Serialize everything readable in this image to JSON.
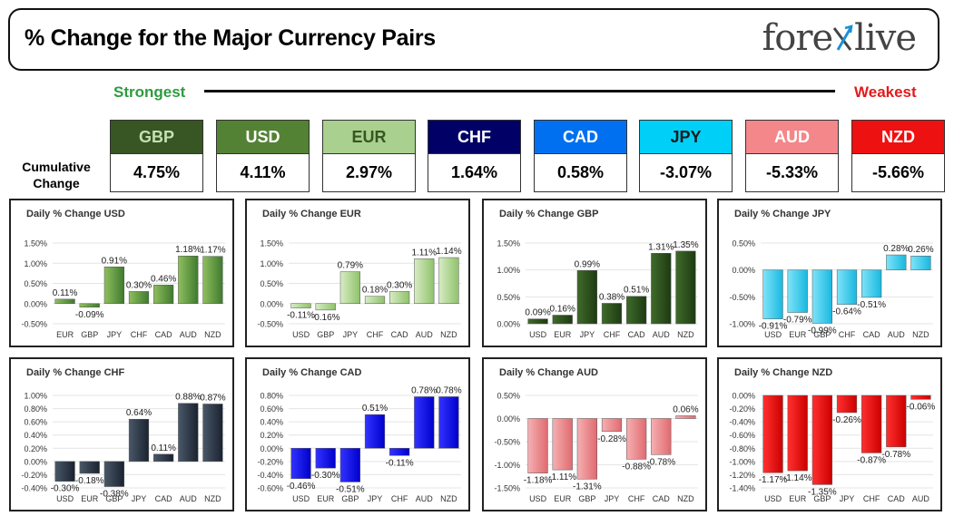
{
  "header": {
    "title": "% Change for the Major Currency Pairs",
    "logo_left": "fore",
    "logo_right": "live"
  },
  "ranking": {
    "strongest_label": "Strongest",
    "weakest_label": "Weakest",
    "cumulative_label_1": "Cumulative",
    "cumulative_label_2": "Change",
    "currencies": [
      {
        "name": "GBP",
        "value": "4.75%",
        "bg": "#375623",
        "fg": "#c6e0b4"
      },
      {
        "name": "USD",
        "value": "4.11%",
        "bg": "#548235",
        "fg": "#ffffff"
      },
      {
        "name": "EUR",
        "value": "2.97%",
        "bg": "#a9d08e",
        "fg": "#375623"
      },
      {
        "name": "CHF",
        "value": "1.64%",
        "bg": "#000066",
        "fg": "#ffffff"
      },
      {
        "name": "CAD",
        "value": "0.58%",
        "bg": "#0070f0",
        "fg": "#ffffff"
      },
      {
        "name": "JPY",
        "value": "-3.07%",
        "bg": "#00d0f8",
        "fg": "#1a1a1a"
      },
      {
        "name": "AUD",
        "value": "-5.33%",
        "bg": "#f4878a",
        "fg": "#ffffff"
      },
      {
        "name": "NZD",
        "value": "-5.66%",
        "bg": "#ee1111",
        "fg": "#ffffff"
      }
    ]
  },
  "chart_data": [
    {
      "type": "bar",
      "title": "Daily % Change USD",
      "categories": [
        "EUR",
        "GBP",
        "JPY",
        "CHF",
        "CAD",
        "AUD",
        "NZD"
      ],
      "values": [
        0.11,
        -0.09,
        0.91,
        0.3,
        0.46,
        1.18,
        1.17
      ],
      "labels": [
        "0.11%",
        "-0.09%",
        "0.91%",
        "0.30%",
        "0.46%",
        "1.18%",
        "1.17%"
      ],
      "ticks": [
        1.5,
        1.0,
        0.5,
        0.0,
        -0.5
      ],
      "tick_labels": [
        "1.50%",
        "1.00%",
        "0.50%",
        "0.00%",
        "-0.50%"
      ],
      "ylim": [
        -0.5,
        1.5
      ],
      "colors": [
        "#8fbf5e",
        "#3f7a2f"
      ]
    },
    {
      "type": "bar",
      "title": "Daily % Change EUR",
      "categories": [
        "USD",
        "GBP",
        "JPY",
        "CHF",
        "CAD",
        "AUD",
        "NZD"
      ],
      "values": [
        -0.11,
        -0.16,
        0.79,
        0.18,
        0.3,
        1.11,
        1.14
      ],
      "labels": [
        "-0.11%",
        "-0.16%",
        "0.79%",
        "0.18%",
        "0.30%",
        "1.11%",
        "1.14%"
      ],
      "ticks": [
        1.5,
        1.0,
        0.5,
        0.0,
        -0.5
      ],
      "tick_labels": [
        "1.50%",
        "1.00%",
        "0.50%",
        "0.00%",
        "-0.50%"
      ],
      "ylim": [
        -0.5,
        1.5
      ],
      "colors": [
        "#d7ecc4",
        "#8fc26a"
      ]
    },
    {
      "type": "bar",
      "title": "Daily % Change GBP",
      "categories": [
        "USD",
        "EUR",
        "JPY",
        "CHF",
        "CAD",
        "AUD",
        "NZD"
      ],
      "values": [
        0.09,
        0.16,
        0.99,
        0.38,
        0.51,
        1.31,
        1.35
      ],
      "labels": [
        "0.09%",
        "0.16%",
        "0.99%",
        "0.38%",
        "0.51%",
        "1.31%",
        "1.35%"
      ],
      "ticks": [
        1.5,
        1.0,
        0.5,
        0.0
      ],
      "tick_labels": [
        "1.50%",
        "1.00%",
        "0.50%",
        "0.00%"
      ],
      "ylim": [
        0,
        1.5
      ],
      "colors": [
        "#3f6b2a",
        "#1e3a12"
      ]
    },
    {
      "type": "bar",
      "title": "Daily % Change JPY",
      "categories": [
        "USD",
        "EUR",
        "GBP",
        "CHF",
        "CAD",
        "AUD",
        "NZD"
      ],
      "values": [
        -0.91,
        -0.79,
        -0.99,
        -0.64,
        -0.51,
        0.28,
        0.26
      ],
      "labels": [
        "-0.91%",
        "-0.79%",
        "-0.99%",
        "-0.64%",
        "-0.51%",
        "0.28%",
        "0.26%"
      ],
      "ticks": [
        0.5,
        0.0,
        -0.5,
        -1.0
      ],
      "tick_labels": [
        "0.50%",
        "0.00%",
        "-0.50%",
        "-1.00%"
      ],
      "ylim": [
        -1.0,
        0.5
      ],
      "colors": [
        "#7fe3f8",
        "#18b8e0"
      ]
    },
    {
      "type": "bar",
      "title": "Daily % Change CHF",
      "categories": [
        "USD",
        "EUR",
        "GBP",
        "JPY",
        "CAD",
        "AUD",
        "NZD"
      ],
      "values": [
        -0.3,
        -0.18,
        -0.38,
        0.64,
        0.11,
        0.88,
        0.87
      ],
      "labels": [
        "-0.30%",
        "-0.18%",
        "-0.38%",
        "0.64%",
        "0.11%",
        "0.88%",
        "0.87%"
      ],
      "ticks": [
        1.0,
        0.8,
        0.6,
        0.4,
        0.2,
        0.0,
        -0.2,
        -0.4
      ],
      "tick_labels": [
        "1.00%",
        "0.80%",
        "0.60%",
        "0.40%",
        "0.20%",
        "0.00%",
        "-0.20%",
        "-0.40%"
      ],
      "ylim": [
        -0.4,
        1.0
      ],
      "colors": [
        "#4a5868",
        "#1a2230"
      ]
    },
    {
      "type": "bar",
      "title": "Daily % Change CAD",
      "categories": [
        "USD",
        "EUR",
        "GBP",
        "JPY",
        "CHF",
        "AUD",
        "NZD"
      ],
      "values": [
        -0.46,
        -0.3,
        -0.51,
        0.51,
        -0.11,
        0.78,
        0.78
      ],
      "labels": [
        "-0.46%",
        "-0.30%",
        "-0.51%",
        "0.51%",
        "-0.11%",
        "0.78%",
        "0.78%"
      ],
      "ticks": [
        0.8,
        0.6,
        0.4,
        0.2,
        0.0,
        -0.2,
        -0.4,
        -0.6
      ],
      "tick_labels": [
        "0.80%",
        "0.60%",
        "0.40%",
        "0.20%",
        "0.00%",
        "-0.20%",
        "-0.40%",
        "-0.60%"
      ],
      "ylim": [
        -0.6,
        0.8
      ],
      "colors": [
        "#3333ff",
        "#0000cc"
      ]
    },
    {
      "type": "bar",
      "title": "Daily % Change AUD",
      "categories": [
        "USD",
        "EUR",
        "GBP",
        "JPY",
        "CHF",
        "CAD",
        "NZD"
      ],
      "values": [
        -1.18,
        -1.11,
        -1.31,
        -0.28,
        -0.88,
        -0.78,
        0.06
      ],
      "labels": [
        "-1.18%",
        "-1.11%",
        "-1.31%",
        "-0.28%",
        "-0.88%",
        "-0.78%",
        "0.06%"
      ],
      "ticks": [
        0.5,
        0.0,
        -0.5,
        -1.0,
        -1.5
      ],
      "tick_labels": [
        "0.50%",
        "0.00%",
        "-0.50%",
        "-1.00%",
        "-1.50%"
      ],
      "ylim": [
        -1.5,
        0.5
      ],
      "colors": [
        "#f6b0b2",
        "#e06a70"
      ]
    },
    {
      "type": "bar",
      "title": "Daily % Change NZD",
      "categories": [
        "USD",
        "EUR",
        "GBP",
        "JPY",
        "CHF",
        "CAD",
        "AUD"
      ],
      "values": [
        -1.17,
        -1.14,
        -1.35,
        -0.26,
        -0.87,
        -0.78,
        -0.06
      ],
      "labels": [
        "-1.17%",
        "-1.14%",
        "-1.35%",
        "-0.26%",
        "-0.87%",
        "-0.78%",
        "-0.06%"
      ],
      "ticks": [
        0.0,
        -0.2,
        -0.4,
        -0.6,
        -0.8,
        -1.0,
        -1.2,
        -1.4
      ],
      "tick_labels": [
        "0.00%",
        "-0.20%",
        "-0.40%",
        "-0.60%",
        "-0.80%",
        "-1.00%",
        "-1.20%",
        "-1.40%"
      ],
      "ylim": [
        -1.4,
        0.0
      ],
      "colors": [
        "#ff3030",
        "#cc0000"
      ]
    }
  ]
}
